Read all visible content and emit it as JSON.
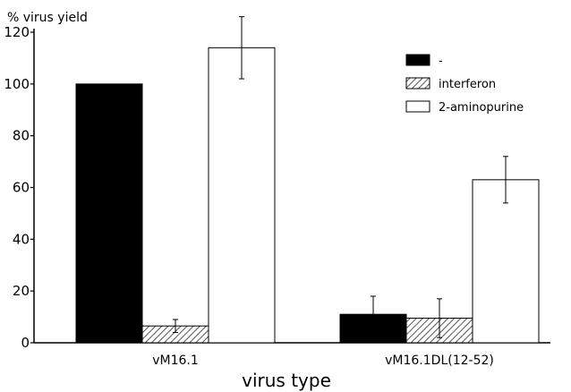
{
  "chart_data": {
    "type": "bar",
    "title": "",
    "ylabel": "% virus yield",
    "xlabel": "virus type",
    "ylim": [
      0,
      120
    ],
    "yticks": [
      0,
      20,
      40,
      60,
      80,
      100,
      120
    ],
    "grid": false,
    "legend_position": "top-right",
    "categories": [
      "vM16.1",
      "vM16.1DL(12-52)"
    ],
    "series": [
      {
        "name": "-",
        "values": [
          100,
          11
        ],
        "errors": [
          null,
          7
        ],
        "fill": "solid-black"
      },
      {
        "name": "interferon",
        "values": [
          6.5,
          9.5
        ],
        "errors": [
          2.5,
          7.5
        ],
        "fill": "diagonal-hatch"
      },
      {
        "name": "2-aminopurine",
        "values": [
          114,
          63
        ],
        "errors": [
          12,
          9
        ],
        "fill": "white"
      }
    ],
    "colors": {
      "black": "#000000",
      "white": "#ffffff",
      "hatch": "#555555"
    }
  }
}
